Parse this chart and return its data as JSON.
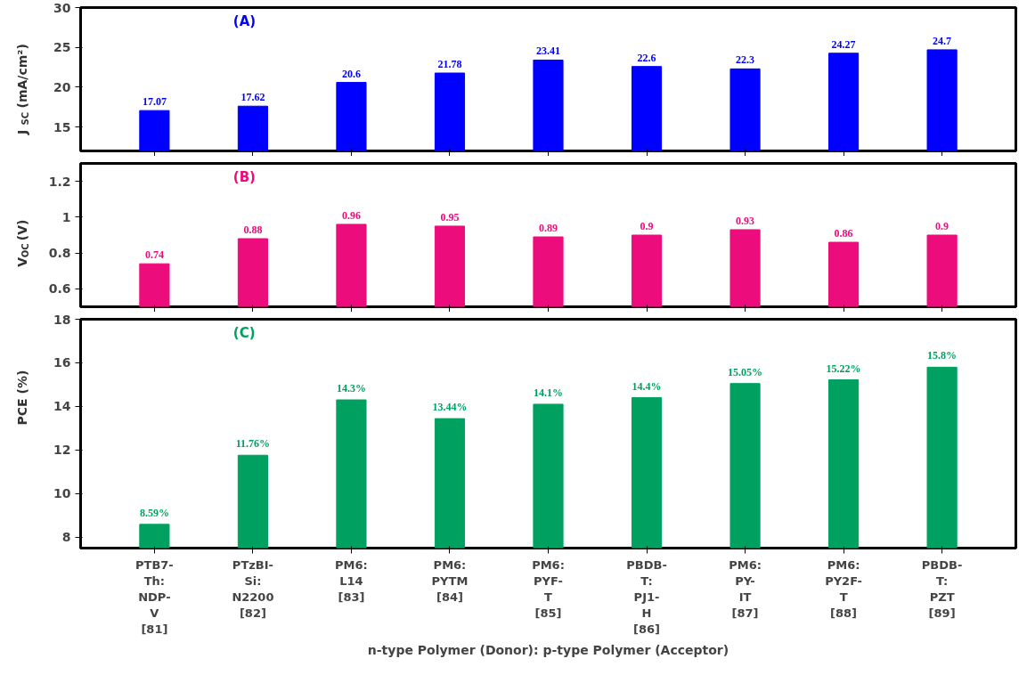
{
  "chart_data": [
    {
      "type": "bar",
      "title": "(A)",
      "ylabel": "J$_{SC}$ (mA/cm²)",
      "categories": [
        null,
        null,
        null,
        null,
        null,
        null,
        null,
        null,
        null
      ],
      "values": [
        17.07,
        17.62,
        20.6,
        21.78,
        23.41,
        22.6,
        22.3,
        24.27,
        24.7
      ],
      "color": "#0000ff",
      "ylim": [
        12,
        30
      ],
      "yticks": [
        15,
        20,
        25,
        30
      ],
      "data_labels": true,
      "tick_labels": "y",
      "grid": false
    },
    {
      "type": "bar",
      "title": "(B)",
      "ylabel": "V$_{OC}$ (V)",
      "categories": [
        null,
        null,
        null,
        null,
        null,
        null,
        null,
        null,
        null
      ],
      "values": [
        0.74,
        0.88,
        0.96,
        0.95,
        0.89,
        0.9,
        0.93,
        0.86,
        0.9
      ],
      "color": "#ec0c7c",
      "ylim": [
        0.5,
        1.3
      ],
      "yticks": [
        0.6,
        0.8,
        1,
        1.2
      ],
      "data_labels": true,
      "tick_labels": "y",
      "grid": false
    },
    {
      "type": "bar",
      "title": "(C)",
      "ylabel": "PCE (%)",
      "xlabel": "n-type Polymer (Donor): p-type Polymer (Acceptor)",
      "categories": [
        "PTB7-\nTh:\nNDP-\nV\n[81]",
        "PTzBI-\nSi:\nN2200\n[82]",
        "PM6:\nL14\n[83]",
        "PM6:\nPYTM\n[84]",
        "PM6:\nPYF-\nT\n[85]",
        "PBDB-\nT:\nPJ1-\nH\n[86]",
        "PM6:\nPY-\nIT\n[87]",
        "PM6:\nPY2F-\nT\n[88]",
        "PBDB-\nT:\nPZT\n[89]"
      ],
      "values": [
        8.59,
        11.76,
        14.3,
        13.44,
        14.1,
        14.4,
        15.05,
        15.22,
        15.8
      ],
      "color": "#00a060",
      "ylim": [
        7.5,
        18
      ],
      "yticks": [
        8,
        10,
        12,
        14,
        16,
        18
      ],
      "value_labels": [
        "8.59%",
        "11.76%",
        "14.3%",
        "13.44%",
        "14.1%",
        "14.4%",
        "15.05%",
        "15.22%",
        "15.8%"
      ],
      "grid": false
    }
  ]
}
